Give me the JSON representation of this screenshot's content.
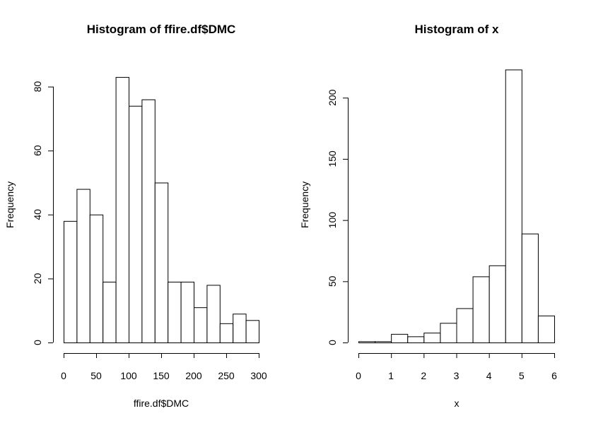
{
  "chart_data": [
    {
      "type": "bar",
      "title": "Histogram of ffire.df$DMC",
      "xlabel": "ffire.df$DMC",
      "ylabel": "Frequency",
      "bin_edges": [
        0,
        20,
        40,
        60,
        80,
        100,
        120,
        140,
        160,
        180,
        200,
        220,
        240,
        260,
        280,
        300
      ],
      "values": [
        38,
        48,
        40,
        19,
        83,
        74,
        76,
        50,
        19,
        19,
        11,
        18,
        6,
        9,
        7
      ],
      "xlim": [
        0,
        300
      ],
      "ylim": [
        0,
        85
      ],
      "x_ticks": [
        "0",
        "50",
        "100",
        "150",
        "200",
        "250",
        "300"
      ],
      "y_ticks": [
        "0",
        "20",
        "40",
        "60",
        "80"
      ]
    },
    {
      "type": "bar",
      "title": "Histogram of x",
      "xlabel": "x",
      "ylabel": "Frequency",
      "bin_edges": [
        0,
        0.5,
        1,
        1.5,
        2,
        2.5,
        3,
        3.5,
        4,
        4.5,
        5,
        5.5,
        6
      ],
      "values": [
        1,
        1,
        7,
        5,
        8,
        16,
        28,
        54,
        63,
        223,
        89,
        22
      ],
      "xlim": [
        0,
        6
      ],
      "ylim": [
        0,
        225
      ],
      "x_ticks": [
        "0",
        "1",
        "2",
        "3",
        "4",
        "5",
        "6"
      ],
      "y_ticks": [
        "0",
        "50",
        "100",
        "150",
        "200"
      ]
    }
  ]
}
